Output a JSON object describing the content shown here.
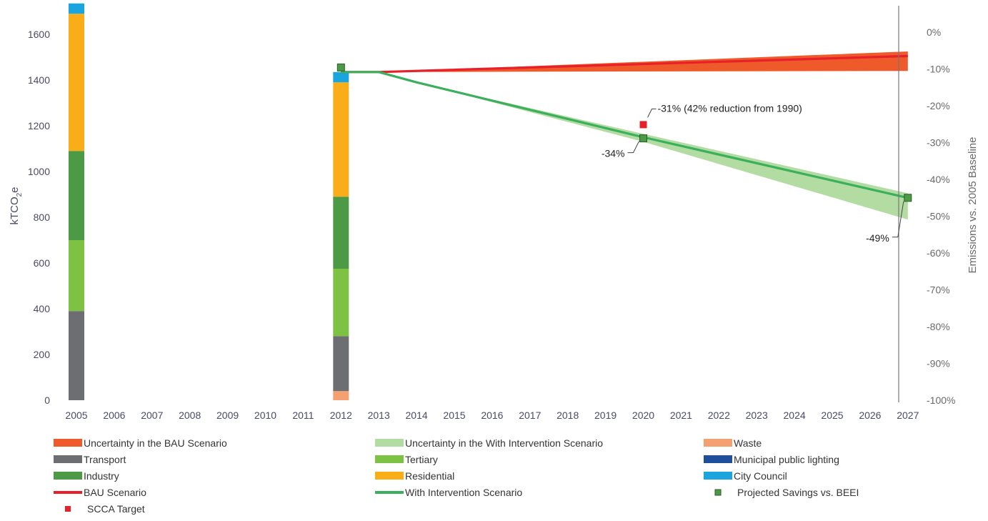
{
  "chart_data": {
    "type": "bar",
    "left_axis": {
      "label_main": "kTCO",
      "label_sub": "2",
      "label_tail": "e",
      "ylim": [
        0,
        1750
      ],
      "ticks": [
        0,
        200,
        400,
        600,
        800,
        1000,
        1200,
        1400,
        1600
      ]
    },
    "right_axis": {
      "label": "Emissions vs. 2005 Baseline",
      "ticks": [
        "0%",
        "-10%",
        "-20%",
        "-30%",
        "-40%",
        "-50%",
        "-60%",
        "-70%",
        "-80%",
        "-90%",
        "-100%"
      ]
    },
    "x_categories": [
      "2005",
      "2006",
      "2007",
      "2008",
      "2009",
      "2010",
      "2011",
      "2012",
      "2013",
      "2014",
      "2015",
      "2016",
      "2017",
      "2018",
      "2019",
      "2020",
      "2021",
      "2022",
      "2023",
      "2024",
      "2025",
      "2026",
      "2027"
    ],
    "colors": {
      "waste": "#f4a070",
      "transport": "#6d6e71",
      "tertiary": "#7dc242",
      "municipal_lighting": "#1f4e9c",
      "industry": "#4c9a45",
      "residential": "#f9ae19",
      "city_council": "#1ba5df",
      "bau_line": "#e8202a",
      "bau_band": "#ef5a2b",
      "wi_line": "#3aaf5c",
      "wi_band": "#b2dca2",
      "saving_fill": "#4c9a45",
      "target": "#e8202a"
    },
    "stacked_bars": [
      {
        "year": "2005",
        "segments": [
          {
            "key": "waste",
            "value": 0
          },
          {
            "key": "transport",
            "value": 390
          },
          {
            "key": "tertiary",
            "value": 310
          },
          {
            "key": "industry",
            "value": 390
          },
          {
            "key": "residential",
            "value": 600
          },
          {
            "key": "city_council",
            "value": 45
          }
        ]
      },
      {
        "year": "2012",
        "segments": [
          {
            "key": "waste",
            "value": 40
          },
          {
            "key": "transport",
            "value": 240
          },
          {
            "key": "tertiary",
            "value": 295
          },
          {
            "key": "industry",
            "value": 315
          },
          {
            "key": "residential",
            "value": 500
          },
          {
            "key": "city_council",
            "value": 45
          }
        ]
      }
    ],
    "bau_scenario": {
      "x": [
        "2012",
        "2013",
        "2027"
      ],
      "y": [
        1435,
        1435,
        1505
      ],
      "band_upper": [
        1435,
        1435,
        1525
      ],
      "band_lower": [
        1435,
        1435,
        1440
      ]
    },
    "with_intervention": {
      "x": [
        "2012",
        "2013",
        "2014",
        "2020",
        "2027"
      ],
      "y": [
        1435,
        1435,
        1390,
        1150,
        885
      ],
      "band_upper": [
        1435,
        1435,
        1390,
        1165,
        905
      ],
      "band_lower": [
        1435,
        1435,
        1390,
        1130,
        790
      ]
    },
    "projected_savings": [
      {
        "x": "2012",
        "y": 1455
      },
      {
        "x": "2020",
        "y": 1145
      },
      {
        "x": "2027",
        "y": 885
      }
    ],
    "scca_target": {
      "x": "2020",
      "y": 1205
    },
    "annotations": [
      {
        "text": "-31% (42% reduction from 1990)",
        "x": "2020",
        "y": 1205
      },
      {
        "text": "-34%",
        "x": "2020",
        "y": 1145
      },
      {
        "text": "-49%",
        "x": "2027",
        "y": 885
      }
    ],
    "legend": [
      {
        "label": "Uncertainty in the BAU Scenario",
        "swatch": "band",
        "color_key": "bau_band"
      },
      {
        "label": "Uncertainty in the With Intervention Scenario",
        "swatch": "band",
        "color_key": "wi_band"
      },
      {
        "label": "Waste",
        "swatch": "band",
        "color_key": "waste"
      },
      {
        "label": "Transport",
        "swatch": "band",
        "color_key": "transport"
      },
      {
        "label": "Tertiary",
        "swatch": "band",
        "color_key": "tertiary"
      },
      {
        "label": "Municipal public lighting",
        "swatch": "band",
        "color_key": "municipal_lighting"
      },
      {
        "label": "Industry",
        "swatch": "band",
        "color_key": "industry"
      },
      {
        "label": "Residential",
        "swatch": "band",
        "color_key": "residential"
      },
      {
        "label": "City Council",
        "swatch": "band",
        "color_key": "city_council"
      },
      {
        "label": "BAU Scenario",
        "swatch": "line",
        "color_key": "bau_line"
      },
      {
        "label": "With Intervention Scenario",
        "swatch": "line",
        "color_key": "wi_line"
      },
      {
        "label": "Projected Savings vs. BEEI",
        "swatch": "square-outline",
        "color_key": "saving_fill"
      },
      {
        "label": "SCCA Target",
        "swatch": "square",
        "color_key": "target"
      }
    ]
  }
}
